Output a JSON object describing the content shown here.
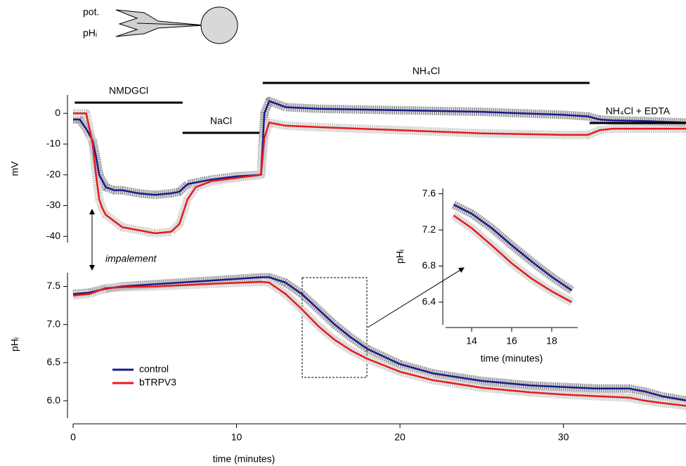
{
  "schematic": {
    "labels": [
      "pot.",
      "pHᵢ"
    ]
  },
  "chart_data": [
    {
      "type": "line",
      "ylabel": "mV",
      "xlim": [
        0,
        37.5
      ],
      "ylim": [
        -42,
        6
      ],
      "yticks": [
        0,
        -10,
        -20,
        -30,
        -40
      ],
      "x": [
        0,
        0.4,
        0.8,
        1.0,
        1.2,
        1.4,
        1.6,
        1.8,
        2.0,
        2.5,
        3,
        4,
        5,
        6,
        6.5,
        7,
        7.5,
        8.5,
        10,
        11.5,
        11.7,
        12,
        12.5,
        13,
        15,
        20,
        25,
        30,
        31.5,
        32.2,
        33,
        35,
        37.6
      ],
      "series": [
        {
          "name": "control",
          "color": "#1a1a8e",
          "band_color": "#9a9a9a",
          "values": [
            -2,
            -2,
            -5,
            -7,
            -9,
            -14,
            -20,
            -22,
            -24,
            -25,
            -25,
            -26,
            -26.5,
            -26,
            -25.5,
            -23,
            -22.5,
            -21.5,
            -20.5,
            -20,
            0,
            4,
            3,
            2,
            1.5,
            1,
            0.5,
            -0.5,
            -1,
            -2,
            -2.3,
            -2.5,
            -3
          ]
        },
        {
          "name": "bTRPV3",
          "color": "#e8191d",
          "band_color": "#cfcfcf",
          "values": [
            0,
            0,
            0,
            -5,
            -10,
            -20,
            -28,
            -31,
            -33,
            -35,
            -37,
            -38,
            -39,
            -38.5,
            -36,
            -28,
            -24,
            -22,
            -21,
            -20,
            -8,
            -3,
            -3.5,
            -4,
            -4.5,
            -5.5,
            -6.5,
            -7,
            -7,
            -5.5,
            -5,
            -5,
            -5
          ]
        }
      ],
      "solutions": [
        {
          "label": "NMDGCl",
          "start": 0.1,
          "end": 6.7,
          "level": 2
        },
        {
          "label": "NaCl",
          "start": 6.7,
          "end": 11.4,
          "level": 0
        },
        {
          "label": "NH₄Cl",
          "start": 11.6,
          "end": 31.6,
          "level": 3
        },
        {
          "label": "NH₄Cl + EDTA",
          "start": 31.6,
          "end": 37.6,
          "level": 1
        }
      ]
    },
    {
      "type": "line",
      "ylabel": "pHᵢ",
      "xlabel": "time (minutes)",
      "annotation": "impalement",
      "xlim": [
        0,
        37.5
      ],
      "ylim": [
        5.77,
        7.68
      ],
      "xticks": [
        0,
        10,
        20,
        30
      ],
      "yticks": [
        {
          "value": 7.5,
          "label": "7.5"
        },
        {
          "value": 7,
          "label": "7.0"
        },
        {
          "value": 6.5,
          "label": "6.5"
        },
        {
          "value": 6,
          "label": "6.0"
        }
      ],
      "x": [
        0,
        1,
        2,
        3,
        5,
        8,
        11.5,
        12,
        13,
        14,
        15,
        16,
        17,
        18,
        20,
        22,
        25,
        28,
        30,
        32,
        34,
        35,
        36,
        37.6
      ],
      "series": [
        {
          "name": "control",
          "color": "#1a1a8e",
          "band_color": "#9a9a9a",
          "values": [
            7.4,
            7.42,
            7.47,
            7.5,
            7.53,
            7.57,
            7.62,
            7.62,
            7.55,
            7.4,
            7.2,
            7.0,
            6.83,
            6.68,
            6.48,
            6.36,
            6.26,
            6.2,
            6.18,
            6.16,
            6.16,
            6.12,
            6.06,
            6.0
          ]
        },
        {
          "name": "bTRPV3",
          "color": "#e8191d",
          "band_color": "#cfcfcf",
          "values": [
            7.38,
            7.4,
            7.48,
            7.49,
            7.5,
            7.53,
            7.56,
            7.55,
            7.4,
            7.2,
            6.98,
            6.8,
            6.66,
            6.55,
            6.38,
            6.27,
            6.17,
            6.11,
            6.08,
            6.06,
            6.04,
            6.0,
            5.97,
            5.93
          ]
        }
      ]
    },
    {
      "type": "line",
      "ylabel": "pHᵢ",
      "xlabel": "time (minutes)",
      "xlim": [
        12.7,
        19.3
      ],
      "ylim": [
        6.15,
        7.66
      ],
      "xticks": [
        14,
        16,
        18
      ],
      "yticks": [
        7.6,
        7.2,
        6.8,
        6.4
      ],
      "x": [
        13.1,
        14,
        15,
        16,
        17,
        18,
        19
      ],
      "series": [
        {
          "name": "control",
          "color": "#1a1a8e",
          "band_color": "#9a9a9a",
          "values": [
            7.48,
            7.38,
            7.22,
            7.03,
            6.85,
            6.68,
            6.53
          ]
        },
        {
          "name": "bTRPV3",
          "color": "#e8191d",
          "band_color": "#cfcfcf",
          "values": [
            7.36,
            7.22,
            7.03,
            6.83,
            6.66,
            6.52,
            6.4
          ]
        }
      ]
    }
  ]
}
